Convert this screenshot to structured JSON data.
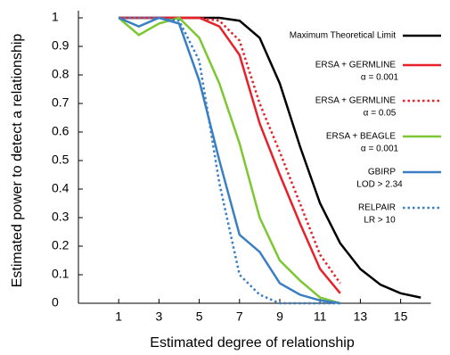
{
  "chart_data": {
    "type": "line",
    "xlabel": "Estimated degree of relationship",
    "ylabel": "Estimated power to detect a relationship",
    "x": [
      1,
      2,
      3,
      4,
      5,
      6,
      7,
      8,
      9,
      10,
      11,
      12,
      13,
      14,
      15,
      16
    ],
    "xlim": [
      -1,
      16.5
    ],
    "xticks": [
      1,
      3,
      5,
      7,
      9,
      11,
      13,
      15
    ],
    "ylim": [
      0,
      1
    ],
    "yticks": [
      0,
      0.1,
      0.2,
      0.3,
      0.4,
      0.5,
      0.6,
      0.7,
      0.8,
      0.9,
      1
    ],
    "legend": "upper right",
    "series": [
      {
        "name": "Maximum Theoretical Limit",
        "color": "#000000",
        "style": "solid",
        "values": [
          1,
          1,
          1,
          1,
          1,
          1,
          0.99,
          0.93,
          0.77,
          0.55,
          0.35,
          0.21,
          0.12,
          0.065,
          0.035,
          0.02
        ]
      },
      {
        "name": "ERSA + GERMLINE",
        "detail": "α = 0.001",
        "color": "#e8202a",
        "style": "solid",
        "values": [
          1,
          1,
          1,
          1,
          1,
          0.97,
          0.87,
          0.63,
          0.45,
          0.28,
          0.12,
          0.035,
          null,
          null,
          null,
          null
        ]
      },
      {
        "name": "ERSA + GERMLINE",
        "detail": "α = 0.05",
        "color": "#e8202a",
        "style": "dotted",
        "values": [
          1,
          1,
          1,
          1,
          1,
          0.99,
          0.92,
          0.7,
          0.53,
          0.35,
          0.17,
          0.07,
          null,
          null,
          null,
          null
        ]
      },
      {
        "name": "ERSA + BEAGLE",
        "detail": "α = 0.001",
        "color": "#7dc832",
        "style": "solid",
        "values": [
          1,
          0.94,
          0.98,
          1,
          0.93,
          0.77,
          0.56,
          0.3,
          0.15,
          0.08,
          0.02,
          0,
          null,
          null,
          null,
          null
        ]
      },
      {
        "name": "GBIRP",
        "detail": "LOD > 2.34",
        "color": "#3a7fc4",
        "style": "solid",
        "values": [
          1,
          0.97,
          1,
          0.98,
          0.78,
          0.5,
          0.24,
          0.18,
          0.07,
          0.03,
          0.01,
          0,
          null,
          null,
          null,
          null
        ]
      },
      {
        "name": "RELPAIR",
        "detail": "LR > 10",
        "color": "#3a7fc4",
        "style": "dotted",
        "values": [
          1,
          1,
          1,
          0.99,
          0.85,
          0.42,
          0.1,
          0.03,
          0,
          0,
          0,
          0,
          null,
          null,
          null,
          null
        ]
      }
    ]
  }
}
